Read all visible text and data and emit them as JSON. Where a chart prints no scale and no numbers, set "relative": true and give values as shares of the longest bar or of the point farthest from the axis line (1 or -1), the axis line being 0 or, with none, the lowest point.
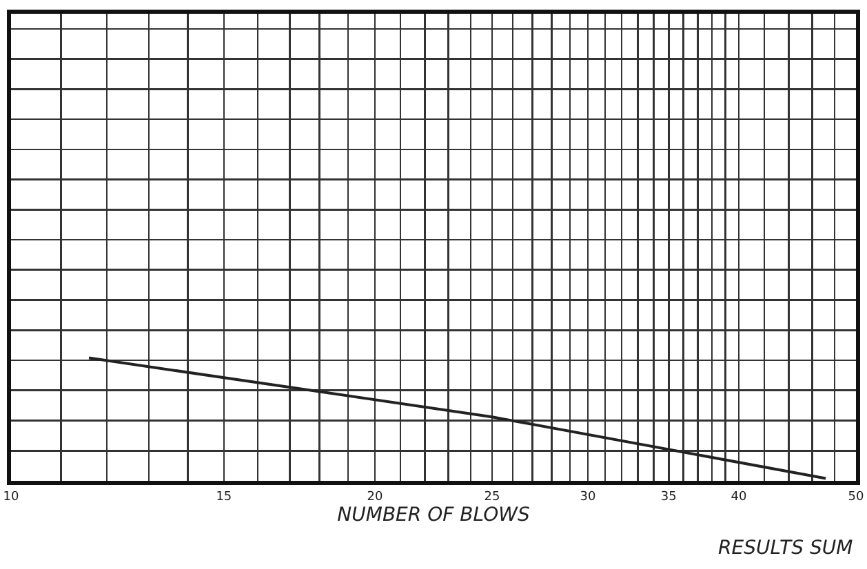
{
  "chart_data": {
    "type": "line",
    "relative": true,
    "xlabel": "NUMBER OF BLOWS",
    "log": "x",
    "xlim": [
      10,
      50
    ],
    "xticks": [
      10,
      {
        "value": 11,
        "label": null
      },
      {
        "value": 12,
        "label": null
      },
      {
        "value": 13,
        "label": null
      },
      {
        "value": 14,
        "label": null
      },
      15,
      {
        "value": 16,
        "label": null
      },
      {
        "value": 17,
        "label": null
      },
      {
        "value": 18,
        "label": null
      },
      {
        "value": 19,
        "label": null
      },
      20,
      {
        "value": 21,
        "label": null
      },
      {
        "value": 22,
        "label": null
      },
      {
        "value": 23,
        "label": null
      },
      {
        "value": 24,
        "label": null
      },
      25,
      {
        "value": 26,
        "label": null
      },
      {
        "value": 27,
        "label": null
      },
      {
        "value": 28,
        "label": null
      },
      {
        "value": 29,
        "label": null
      },
      30,
      {
        "value": 31,
        "label": null
      },
      {
        "value": 32,
        "label": null
      },
      {
        "value": 33,
        "label": null
      },
      {
        "value": 34,
        "label": null
      },
      35,
      {
        "value": 36,
        "label": null
      },
      {
        "value": 37,
        "label": null
      },
      {
        "value": 38,
        "label": null
      },
      {
        "value": 39,
        "label": null
      },
      40,
      {
        "value": 42,
        "label": null
      },
      {
        "value": 44,
        "label": null
      },
      {
        "value": 46,
        "label": null
      },
      {
        "value": 48,
        "label": null
      },
      50
    ],
    "series": [
      {
        "color": "#222222",
        "x": [
          11.6,
          25,
          47.2
        ],
        "values": [
          1,
          0.52,
          0.02
        ]
      }
    ],
    "grid": true,
    "marker": "none",
    "line_style": "solid",
    "tick_labels": "x",
    "annotations": [
      "RESULTS SUM"
    ]
  }
}
